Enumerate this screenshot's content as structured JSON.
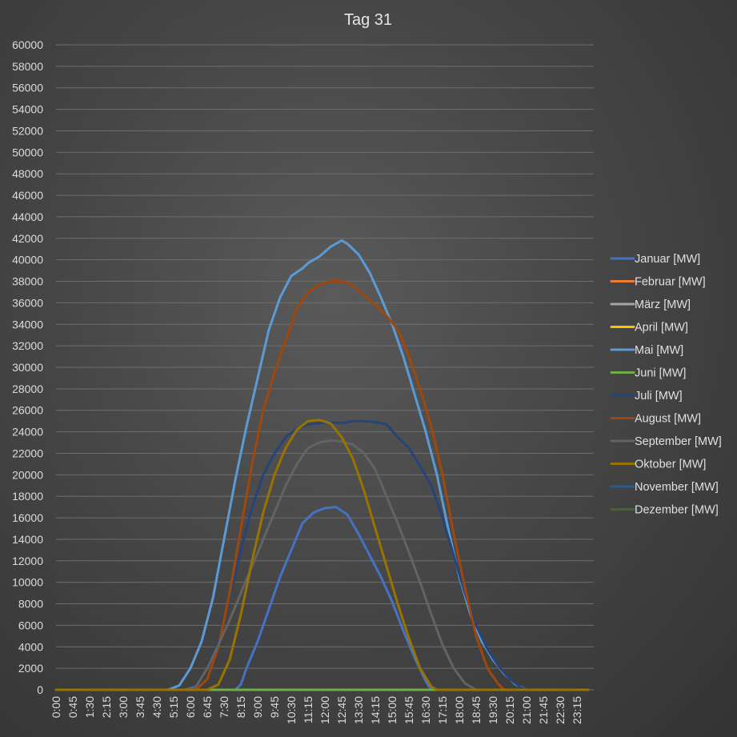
{
  "chart_data": {
    "type": "line",
    "title": "Tag 31",
    "xlabel": "",
    "ylabel": "",
    "ylim": [
      0,
      60000
    ],
    "yticks": [
      0,
      2000,
      4000,
      6000,
      8000,
      10000,
      12000,
      14000,
      16000,
      18000,
      20000,
      22000,
      24000,
      26000,
      28000,
      30000,
      32000,
      34000,
      36000,
      38000,
      40000,
      42000,
      44000,
      46000,
      48000,
      50000,
      52000,
      54000,
      56000,
      58000,
      60000
    ],
    "x_tick_labels": [
      "0:00",
      "0:45",
      "1:30",
      "2:15",
      "3:00",
      "3:45",
      "4:30",
      "5:15",
      "6:00",
      "6:45",
      "7:30",
      "8:15",
      "9:00",
      "9:45",
      "10:30",
      "11:15",
      "12:00",
      "12:45",
      "13:30",
      "14:15",
      "15:00",
      "15:45",
      "16:30",
      "17:15",
      "18:00",
      "18:45",
      "19:30",
      "20:15",
      "21:00",
      "21:45",
      "22:30",
      "23:15"
    ],
    "x_interval_minutes": 15,
    "grid": true,
    "legend_position": "right",
    "series": [
      {
        "name": "Januar [MW]",
        "color": "#4472C4",
        "points": [
          [
            "8:00",
            0
          ],
          [
            "8:15",
            500
          ],
          [
            "8:30",
            2000
          ],
          [
            "9:00",
            4500
          ],
          [
            "9:30",
            7500
          ],
          [
            "10:00",
            10500
          ],
          [
            "10:30",
            13000
          ],
          [
            "11:00",
            15500
          ],
          [
            "11:30",
            16500
          ],
          [
            "12:00",
            16900
          ],
          [
            "12:30",
            17000
          ],
          [
            "13:00",
            16300
          ],
          [
            "13:30",
            14500
          ],
          [
            "14:00",
            12500
          ],
          [
            "14:30",
            10500
          ],
          [
            "15:00",
            8200
          ],
          [
            "15:30",
            5500
          ],
          [
            "16:00",
            3000
          ],
          [
            "16:30",
            800
          ],
          [
            "16:45",
            0
          ]
        ]
      },
      {
        "name": "Februar [MW]",
        "color": "#ED7D31",
        "points": []
      },
      {
        "name": "März [MW]",
        "color": "#A5A5A5",
        "points": []
      },
      {
        "name": "April [MW]",
        "color": "#FFC000",
        "points": []
      },
      {
        "name": "Mai [MW]",
        "color": "#5B9BD5",
        "points": [
          [
            "5:00",
            0
          ],
          [
            "5:30",
            400
          ],
          [
            "6:00",
            2000
          ],
          [
            "6:30",
            4500
          ],
          [
            "7:00",
            8500
          ],
          [
            "7:30",
            14000
          ],
          [
            "8:00",
            19500
          ],
          [
            "8:30",
            24500
          ],
          [
            "9:00",
            29000
          ],
          [
            "9:30",
            33500
          ],
          [
            "10:00",
            36500
          ],
          [
            "10:30",
            38500
          ],
          [
            "11:00",
            39200
          ],
          [
            "11:15",
            39700
          ],
          [
            "11:45",
            40300
          ],
          [
            "12:15",
            41200
          ],
          [
            "12:45",
            41800
          ],
          [
            "13:00",
            41500
          ],
          [
            "13:30",
            40500
          ],
          [
            "14:00",
            38800
          ],
          [
            "14:30",
            36500
          ],
          [
            "15:00",
            34000
          ],
          [
            "15:30",
            31000
          ],
          [
            "16:00",
            27500
          ],
          [
            "16:30",
            24000
          ],
          [
            "17:00",
            20000
          ],
          [
            "17:30",
            15000
          ],
          [
            "18:00",
            10500
          ],
          [
            "18:30",
            7000
          ],
          [
            "19:00",
            4500
          ],
          [
            "19:30",
            2800
          ],
          [
            "20:00",
            1500
          ],
          [
            "20:30",
            500
          ],
          [
            "21:00",
            0
          ]
        ]
      },
      {
        "name": "Juni [MW]",
        "color": "#70AD47",
        "points": [
          [
            "0:00",
            0
          ],
          [
            "23:45",
            0
          ]
        ]
      },
      {
        "name": "Juli [MW]",
        "color": "#264478",
        "points": [
          [
            "5:45",
            0
          ],
          [
            "6:15",
            400
          ],
          [
            "6:45",
            2000
          ],
          [
            "7:15",
            4500
          ],
          [
            "7:45",
            8500
          ],
          [
            "8:15",
            13000
          ],
          [
            "8:45",
            17000
          ],
          [
            "9:15",
            20000
          ],
          [
            "9:45",
            22000
          ],
          [
            "10:15",
            23500
          ],
          [
            "10:45",
            24300
          ],
          [
            "11:15",
            24700
          ],
          [
            "11:45",
            24800
          ],
          [
            "12:15",
            24900
          ],
          [
            "12:45",
            24800
          ],
          [
            "13:15",
            25000
          ],
          [
            "13:45",
            25000
          ],
          [
            "14:15",
            24900
          ],
          [
            "14:45",
            24700
          ],
          [
            "15:15",
            23500
          ],
          [
            "15:45",
            22500
          ],
          [
            "16:15",
            20800
          ],
          [
            "16:45",
            19000
          ],
          [
            "17:15",
            16000
          ],
          [
            "17:45",
            12500
          ],
          [
            "18:15",
            9000
          ],
          [
            "18:45",
            6000
          ],
          [
            "19:15",
            3800
          ],
          [
            "19:45",
            2200
          ],
          [
            "20:15",
            1000
          ],
          [
            "20:45",
            200
          ],
          [
            "21:00",
            0
          ]
        ]
      },
      {
        "name": "August [MW]",
        "color": "#9E480E",
        "points": [
          [
            "6:15",
            0
          ],
          [
            "6:45",
            1000
          ],
          [
            "7:15",
            4000
          ],
          [
            "7:45",
            9000
          ],
          [
            "8:15",
            15000
          ],
          [
            "8:45",
            21000
          ],
          [
            "9:15",
            26000
          ],
          [
            "9:45",
            29500
          ],
          [
            "10:15",
            32500
          ],
          [
            "10:45",
            35500
          ],
          [
            "11:15",
            37000
          ],
          [
            "11:45",
            37700
          ],
          [
            "12:15",
            38000
          ],
          [
            "12:45",
            38000
          ],
          [
            "13:15",
            37600
          ],
          [
            "13:45",
            36700
          ],
          [
            "14:15",
            35800
          ],
          [
            "14:45",
            34800
          ],
          [
            "15:15",
            33500
          ],
          [
            "15:45",
            31000
          ],
          [
            "16:15",
            28000
          ],
          [
            "16:45",
            24500
          ],
          [
            "17:15",
            20000
          ],
          [
            "17:45",
            14500
          ],
          [
            "18:15",
            9500
          ],
          [
            "18:45",
            5000
          ],
          [
            "19:15",
            2000
          ],
          [
            "19:45",
            500
          ],
          [
            "20:00",
            0
          ]
        ]
      },
      {
        "name": "September [MW]",
        "color": "#636363",
        "points": [
          [
            "5:45",
            0
          ],
          [
            "6:15",
            300
          ],
          [
            "6:45",
            2000
          ],
          [
            "7:15",
            4200
          ],
          [
            "7:45",
            6500
          ],
          [
            "8:15",
            9000
          ],
          [
            "8:45",
            11500
          ],
          [
            "9:15",
            14000
          ],
          [
            "9:45",
            16500
          ],
          [
            "10:15",
            19000
          ],
          [
            "10:45",
            21000
          ],
          [
            "11:15",
            22500
          ],
          [
            "11:45",
            23000
          ],
          [
            "12:15",
            23200
          ],
          [
            "12:45",
            23100
          ],
          [
            "13:15",
            22800
          ],
          [
            "13:45",
            22000
          ],
          [
            "14:15",
            20500
          ],
          [
            "14:45",
            18000
          ],
          [
            "15:15",
            15500
          ],
          [
            "15:45",
            12800
          ],
          [
            "16:15",
            10000
          ],
          [
            "16:45",
            7000
          ],
          [
            "17:15",
            4200
          ],
          [
            "17:45",
            2000
          ],
          [
            "18:15",
            600
          ],
          [
            "18:45",
            0
          ]
        ]
      },
      {
        "name": "Oktober [MW]",
        "color": "#997300",
        "points": [
          [
            "6:45",
            0
          ],
          [
            "7:15",
            500
          ],
          [
            "7:45",
            2800
          ],
          [
            "8:15",
            7000
          ],
          [
            "8:45",
            12000
          ],
          [
            "9:15",
            16500
          ],
          [
            "9:45",
            20000
          ],
          [
            "10:15",
            22500
          ],
          [
            "10:45",
            24200
          ],
          [
            "11:15",
            25000
          ],
          [
            "11:45",
            25100
          ],
          [
            "12:15",
            24800
          ],
          [
            "12:45",
            23500
          ],
          [
            "13:15",
            21500
          ],
          [
            "13:45",
            18500
          ],
          [
            "14:15",
            15000
          ],
          [
            "14:45",
            11500
          ],
          [
            "15:15",
            8000
          ],
          [
            "15:45",
            4800
          ],
          [
            "16:15",
            2000
          ],
          [
            "16:45",
            300
          ],
          [
            "17:00",
            0
          ]
        ]
      },
      {
        "name": "November [MW]",
        "color": "#255E91",
        "points": []
      },
      {
        "name": "Dezember [MW]",
        "color": "#43682B",
        "points": []
      }
    ]
  }
}
